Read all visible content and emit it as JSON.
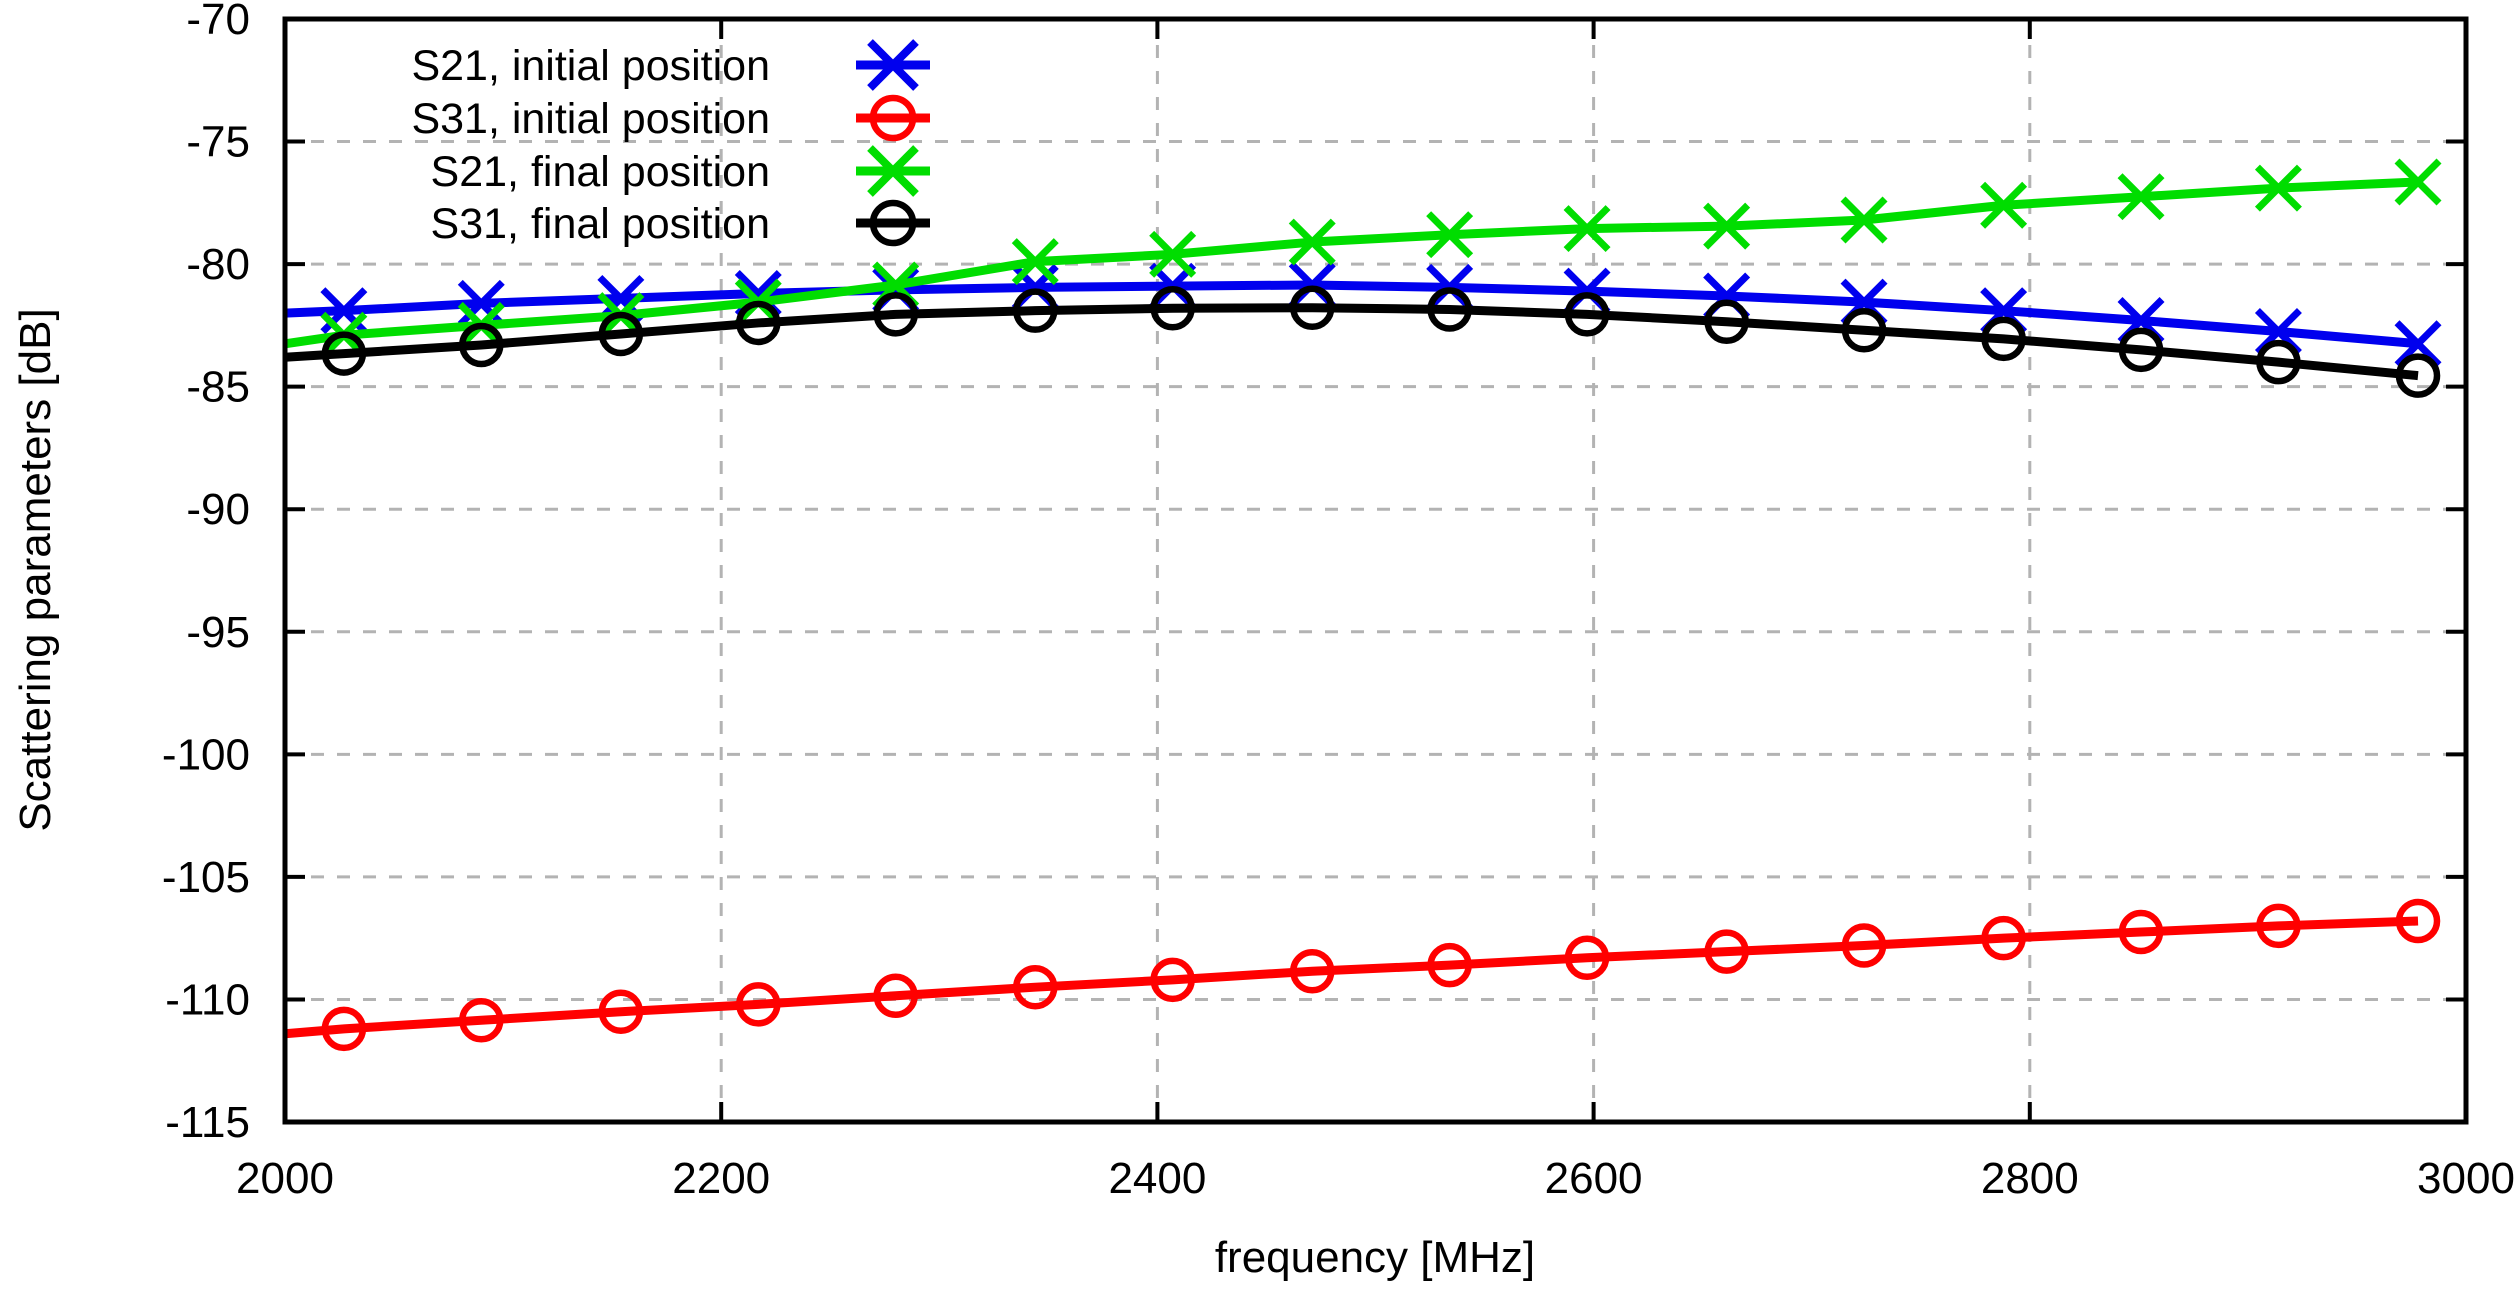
{
  "chart_data": {
    "type": "line",
    "xlabel": "frequency [MHz]",
    "ylabel": "Scattering parameters [dB]",
    "xlim": [
      2000,
      3000
    ],
    "ylim": [
      -115,
      -70
    ],
    "x_ticks": [
      2000,
      2200,
      2400,
      2600,
      2800,
      3000
    ],
    "y_ticks": [
      -70,
      -75,
      -80,
      -85,
      -90,
      -95,
      -100,
      -105,
      -110,
      -115
    ],
    "grid": true,
    "legend_position": "top-left-inside",
    "x": [
      2000,
      2027,
      2090,
      2154,
      2217,
      2280,
      2344,
      2407,
      2471,
      2534,
      2597,
      2661,
      2724,
      2788,
      2851,
      2914,
      2978
    ],
    "marker_start_index": 1,
    "series": [
      {
        "name": "S21, initial position",
        "color": "#0000ee",
        "marker": "x",
        "values": [
          -82.0,
          -81.9,
          -81.6,
          -81.4,
          -81.2,
          -81.05,
          -80.95,
          -80.9,
          -80.85,
          -80.95,
          -81.1,
          -81.3,
          -81.55,
          -81.9,
          -82.3,
          -82.75,
          -83.25
        ]
      },
      {
        "name": "S31, initial position",
        "color": "#ff0000",
        "marker": "o",
        "values": [
          -111.4,
          -111.2,
          -110.85,
          -110.5,
          -110.2,
          -109.85,
          -109.5,
          -109.2,
          -108.85,
          -108.6,
          -108.3,
          -108.05,
          -107.8,
          -107.5,
          -107.25,
          -107.0,
          -106.8
        ]
      },
      {
        "name": "S21, final position",
        "color": "#00dd00",
        "marker": "x",
        "values": [
          -83.25,
          -82.9,
          -82.5,
          -82.1,
          -81.55,
          -80.85,
          -79.9,
          -79.6,
          -79.1,
          -78.8,
          -78.55,
          -78.45,
          -78.2,
          -77.6,
          -77.25,
          -76.9,
          -76.65
        ]
      },
      {
        "name": "S31, final position",
        "color": "#000000",
        "marker": "o",
        "values": [
          -83.8,
          -83.65,
          -83.3,
          -82.85,
          -82.4,
          -82.05,
          -81.9,
          -81.8,
          -81.78,
          -81.85,
          -82.05,
          -82.35,
          -82.7,
          -83.05,
          -83.5,
          -84.0,
          -84.55
        ]
      }
    ],
    "colors": {
      "grid": "#b3b3b3",
      "axis": "#000000",
      "background": "#ffffff"
    }
  }
}
